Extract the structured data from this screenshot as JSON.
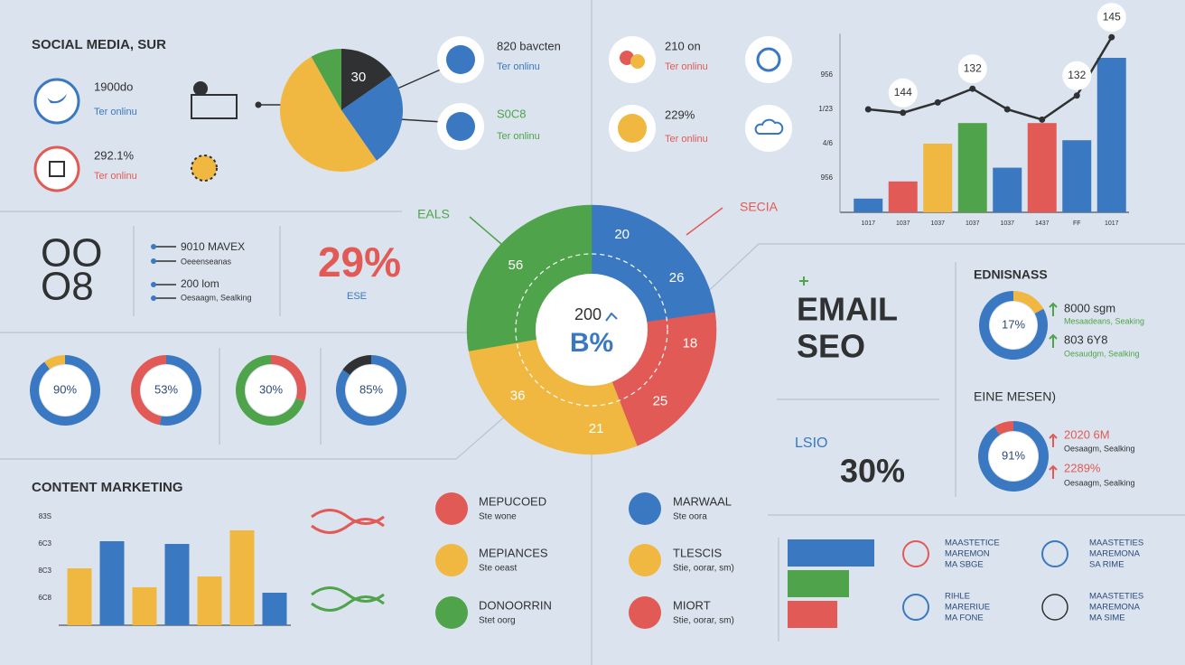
{
  "social": {
    "title": "SOCIAL MEDIA, SUR",
    "stats": [
      {
        "value": "1900do",
        "label": "Ter onlinu"
      },
      {
        "value": "292.1%",
        "label": "Ter onlinu"
      }
    ]
  },
  "channels": [
    {
      "value": "820 bavcten",
      "label": "Ter onlinu"
    },
    {
      "value": "S0C8",
      "label": "Ter onlinu"
    },
    {
      "value": "210 on",
      "label": "Ter onlinu"
    },
    {
      "value": "229%",
      "label": "Ter onlinu"
    }
  ],
  "metrics": {
    "glyph_top": "OO",
    "glyph_bottom": "O8",
    "items": [
      {
        "value": "9010 MAVEX",
        "label": "Oeeenseanas"
      },
      {
        "value": "200 lom",
        "label": "Oesaagm, Sealking"
      }
    ],
    "percent": "29%",
    "percent_label": "ESE"
  },
  "tags": [
    "EALS",
    "SECIA"
  ],
  "email": {
    "title_1": "EMAIL",
    "title_2": "SEO",
    "panel_1": "EDNISNASS",
    "stats_1": [
      {
        "value": "8000 sgm",
        "label": "Mesaadeans, Seaking"
      },
      {
        "value": "803 6Y8",
        "label": "Oesaudgm, Sealking"
      }
    ],
    "panel_2": "EINE MESEN)",
    "stats_2": [
      {
        "value": "2020 6M",
        "label": "Oesaagm, Sealking"
      },
      {
        "value": "2289%",
        "label": "Oesaagm, Sealking"
      }
    ],
    "lsio": "LSIO",
    "lsio_value": "30%"
  },
  "content": {
    "title": "CONTENT MARKETING",
    "items": [
      {
        "value": "MEPUCOED",
        "label": "Ste wone"
      },
      {
        "value": "MEPIANCES",
        "label": "Ste oeast"
      },
      {
        "value": "DONOORRIN",
        "label": "Stet oorg"
      },
      {
        "value": "MARWAAL",
        "label": "Ste oora"
      },
      {
        "value": "TLESCIS",
        "label": "Stie, oorar, sm)"
      },
      {
        "value": "MIORT",
        "label": "Stie, oorar, sm)"
      }
    ]
  },
  "tactics": [
    [
      "MAASTETICE",
      "MAREMON",
      "MA SBGE"
    ],
    [
      "MAASTETIES",
      "MAREMONA",
      "SA RIME"
    ],
    [
      "RIHLE",
      "MARERIUE",
      "MA FONE"
    ],
    [
      "MAASTETIES",
      "MAREMONA",
      "MA SIME"
    ]
  ],
  "chart_data": [
    {
      "type": "pie",
      "values": [
        30,
        49,
        101,
        16
      ],
      "colors": [
        "#2f3132",
        "#3a78c2",
        "#f0b840",
        "#4fa34a"
      ]
    },
    {
      "type": "bar",
      "categories": [
        "1017",
        "1037",
        "1037",
        "1037",
        "1037",
        "1437",
        "FF",
        "1017"
      ],
      "values": [
        0.4,
        0.9,
        2,
        2.6,
        1.3,
        2.6,
        2.1,
        4.5
      ],
      "colors": [
        "#3a78c2",
        "#e25a55",
        "#f0b840",
        "#4fa34a",
        "#3a78c2",
        "#e25a55",
        "#3a78c2",
        "#3a78c2"
      ],
      "ylim": [
        0,
        5.2
      ],
      "yticks": [
        {
          "value": 1,
          "label": "956"
        },
        {
          "value": 2,
          "label": "4/6"
        },
        {
          "value": 3,
          "label": "1/23"
        },
        {
          "value": 4,
          "label": "956"
        }
      ],
      "line": {
        "values": [
          3.0,
          2.9,
          3.2,
          3.6,
          3.0,
          2.7,
          3.4,
          5.1
        ],
        "color": "#2f3132",
        "annotations": [
          "144",
          "132",
          "132",
          "145"
        ]
      }
    },
    {
      "type": "donut",
      "values": [
        20,
        26,
        18,
        25,
        21,
        36,
        56
      ],
      "colors": [
        "#3a78c2",
        "#3a78c2",
        "#e25a55",
        "#e25a55",
        "#f0b840",
        "#f0b840",
        "#4fa34a"
      ],
      "center_value": "200",
      "center_label": "B%"
    },
    {
      "type": "donut",
      "values": [
        90
      ],
      "value_labels": [
        "90%"
      ],
      "colors": [
        "#3a78c2",
        "#f0b840"
      ]
    },
    {
      "type": "donut",
      "values": [
        53
      ],
      "value_labels": [
        "53%"
      ],
      "colors": [
        "#3a78c2",
        "#e25a55"
      ]
    },
    {
      "type": "donut",
      "values": [
        30
      ],
      "value_labels": [
        "30%"
      ],
      "colors": [
        "#e25a55",
        "#4fa34a"
      ]
    },
    {
      "type": "donut",
      "values": [
        85
      ],
      "value_labels": [
        "85%"
      ],
      "colors": [
        "#3a78c2",
        "#2f3132"
      ]
    },
    {
      "type": "donut",
      "values": [
        17
      ],
      "value_labels": [
        "17%"
      ],
      "colors": [
        "#f0b840",
        "#3a78c2"
      ]
    },
    {
      "type": "donut",
      "values": [
        91
      ],
      "value_labels": [
        "91%"
      ],
      "colors": [
        "#3a78c2",
        "#e25a55"
      ]
    },
    {
      "type": "bar",
      "values": [
        2.1,
        3.1,
        1.4,
        3.0,
        1.8,
        3.5,
        1.2
      ],
      "colors": [
        "#f0b840",
        "#3a78c2",
        "#f0b840",
        "#3a78c2",
        "#f0b840",
        "#f0b840",
        "#3a78c2"
      ],
      "ylim": [
        0,
        4.2
      ],
      "yticks": [
        {
          "value": 1,
          "label": "6C8"
        },
        {
          "value": 2,
          "label": "8C3"
        },
        {
          "value": 3,
          "label": "6C3"
        },
        {
          "value": 4,
          "label": "83S"
        }
      ]
    },
    {
      "type": "barh",
      "values": [
        96,
        68,
        55
      ],
      "colors": [
        "#3a78c2",
        "#4fa34a",
        "#e25a55"
      ],
      "xlim": [
        0,
        100
      ]
    }
  ]
}
